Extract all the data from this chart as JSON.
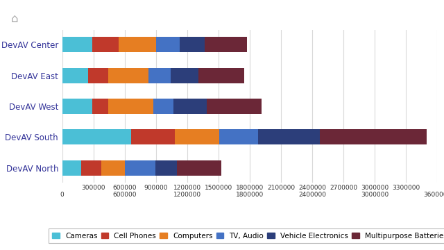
{
  "categories": [
    "DevAV Center",
    "DevAV East",
    "DevAV West",
    "DevAV South",
    "DevAV North"
  ],
  "series": {
    "Cameras": [
      290000,
      250000,
      290000,
      660000,
      180000
    ],
    "Cell Phones": [
      250000,
      190000,
      155000,
      420000,
      195000
    ],
    "Computers": [
      360000,
      390000,
      430000,
      430000,
      230000
    ],
    "TV, Audio": [
      230000,
      210000,
      190000,
      370000,
      290000
    ],
    "Vehicle Electronics": [
      235000,
      270000,
      320000,
      590000,
      205000
    ],
    "Multipurpose Batteries": [
      410000,
      440000,
      530000,
      1030000,
      430000
    ]
  },
  "colors": {
    "Cameras": "#4BBFD6",
    "Cell Phones": "#C0392B",
    "Computers": "#E67E22",
    "TV, Audio": "#4472C4",
    "Vehicle Electronics": "#2C3E7A",
    "Multipurpose Batteries": "#6B2737"
  },
  "xlim": [
    0,
    3600000
  ],
  "background_color": "#FFFFFF",
  "grid_color": "#D9D9D9",
  "ylabel_color": "#000000",
  "bar_height": 0.5
}
